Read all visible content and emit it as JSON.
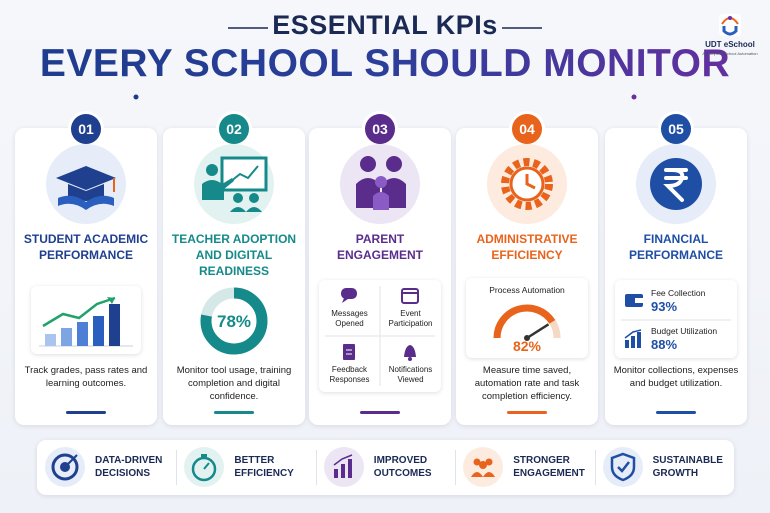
{
  "header": {
    "title_line1": "ESSENTIAL KPIs",
    "title_line2": "EVERY SCHOOL SHOULD MONITOR"
  },
  "logo": {
    "name": "UDT eSchool",
    "tagline": "A Complete School Automation"
  },
  "cards": [
    {
      "number": "01",
      "title": "STUDENT ACADEMIC PERFORMANCE",
      "description": "Track grades, pass rates and learning outcomes."
    },
    {
      "number": "02",
      "title": "TEACHER ADOPTION AND DIGITAL READINESS",
      "donut": {
        "value": 78,
        "label": "78%"
      },
      "description": "Monitor tool usage, training completion and digital confidence."
    },
    {
      "number": "03",
      "title": "PARENT ENGAGEMENT",
      "items": [
        "Messages Opened",
        "Event Participation",
        "Feedback Responses",
        "Notifications Viewed"
      ]
    },
    {
      "number": "04",
      "title": "ADMINISTRATIVE EFFICIENCY",
      "widget_title": "Process Automation",
      "gauge": {
        "value": 82,
        "label": "82%"
      },
      "description": "Measure time saved, automation rate and task completion efficiency."
    },
    {
      "number": "05",
      "title": "FINANCIAL PERFORMANCE",
      "metrics": [
        {
          "label": "Fee Collection",
          "value": "93%"
        },
        {
          "label": "Budget Utilization",
          "value": "88%"
        }
      ],
      "description": "Monitor collections, expenses and budget utilization."
    }
  ],
  "benefits": [
    "DATA-DRIVEN DECISIONS",
    "BETTER EFFICIENCY",
    "IMPROVED OUTCOMES",
    "STRONGER ENGAGEMENT",
    "SUSTAINABLE GROWTH"
  ]
}
